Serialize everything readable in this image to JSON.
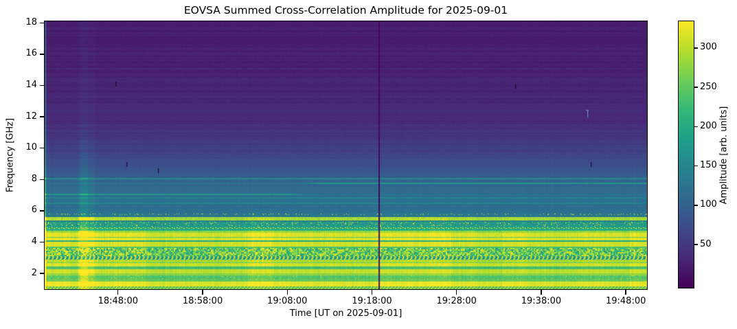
{
  "chart_data": {
    "type": "heatmap",
    "subtype": "radio-dynamic-spectrum",
    "title": "EOVSA Summed Cross-Correlation Amplitude for 2025-09-01",
    "xlabel": "Time [UT on 2025-09-01]",
    "ylabel": "Frequency [GHz]",
    "x_ticks": [
      "18:48:00",
      "18:58:00",
      "19:08:00",
      "19:18:00",
      "19:28:00",
      "19:38:00",
      "19:48:00"
    ],
    "x_range_time": [
      "18:39:20",
      "19:50:30"
    ],
    "y_ticks": [
      2,
      4,
      6,
      8,
      10,
      12,
      14,
      16,
      18
    ],
    "y_range_ghz": [
      1.0,
      18.1
    ],
    "grid": false,
    "colorbar": {
      "label": "Amplitude [arb. units]",
      "ticks": [
        50,
        100,
        150,
        200,
        250,
        300
      ],
      "range": [
        -5,
        334
      ],
      "colormap": "viridis"
    },
    "upper_profile": [
      [
        18.1,
        21
      ],
      [
        17.0,
        23
      ],
      [
        16.0,
        25
      ],
      [
        15.0,
        26
      ],
      [
        14.0,
        29
      ],
      [
        13.0,
        31
      ],
      [
        12.0,
        35
      ],
      [
        11.4,
        40
      ],
      [
        11.0,
        44
      ],
      [
        10.5,
        50
      ],
      [
        10.0,
        56
      ],
      [
        9.6,
        63
      ],
      [
        9.2,
        72
      ],
      [
        8.8,
        80
      ],
      [
        8.4,
        90
      ],
      [
        8.1,
        98
      ],
      [
        7.9,
        104
      ],
      [
        7.5,
        110
      ],
      [
        7.2,
        113
      ],
      [
        6.9,
        117
      ],
      [
        6.6,
        119
      ],
      [
        6.3,
        119
      ],
      [
        6.1,
        116
      ],
      [
        5.95,
        122
      ],
      [
        5.62,
        128
      ]
    ],
    "spectral_bands": [
      {
        "f_top": 8.09,
        "f_bot": 8.01,
        "amp": 150,
        "noise": 6
      },
      {
        "f_top": 7.79,
        "f_bot": 7.71,
        "amp": 118,
        "noise": 6,
        "boost": {
          "side": "right",
          "from": 0.44,
          "amp": 52
        }
      },
      {
        "f_top": 7.09,
        "f_bot": 7.01,
        "amp": 122,
        "noise": 6,
        "boost": {
          "side": "left",
          "from": 0.42,
          "amp": 46
        }
      },
      {
        "f_top": 6.87,
        "f_bot": 6.79,
        "amp": 150,
        "noise": 6
      },
      {
        "f_top": 6.53,
        "f_bot": 6.44,
        "amp": 146,
        "noise": 6
      },
      {
        "f_top": 5.84,
        "f_bot": 5.74,
        "amp": 132,
        "noise": 8,
        "speck": {
          "p": 0.1,
          "amp": 295
        }
      },
      {
        "f_top": 5.62,
        "f_bot": 5.4,
        "amp": 292,
        "noise": 18
      },
      {
        "f_top": 5.4,
        "f_bot": 5.3,
        "amp": 138,
        "noise": 10
      },
      {
        "f_top": 5.3,
        "f_bot": 5.03,
        "amp": 180,
        "noise": 34,
        "speck": {
          "p": 0.05,
          "amp": 330
        }
      },
      {
        "f_top": 5.03,
        "f_bot": 4.93,
        "amp": 186,
        "noise": 12,
        "speck": {
          "p": 0.02,
          "amp": 330
        }
      },
      {
        "f_top": 4.93,
        "f_bot": 4.85,
        "amp": 196,
        "noise": 10,
        "dots": {
          "period": 7,
          "width": 2,
          "amp": 318
        }
      },
      {
        "f_top": 4.85,
        "f_bot": 4.73,
        "amp": 208,
        "noise": 16
      },
      {
        "f_top": 4.73,
        "f_bot": 4.61,
        "amp": 282,
        "noise": 18
      },
      {
        "f_top": 4.61,
        "f_bot": 4.35,
        "amp": 318,
        "noise": 10
      },
      {
        "f_top": 4.35,
        "f_bot": 4.29,
        "amp": 256,
        "noise": 12
      },
      {
        "f_top": 4.29,
        "f_bot": 4.11,
        "amp": 320,
        "noise": 9
      },
      {
        "f_top": 4.11,
        "f_bot": 4.03,
        "amp": 202,
        "noise": 14
      },
      {
        "f_top": 4.03,
        "f_bot": 3.73,
        "amp": 315,
        "noise": 10
      },
      {
        "f_top": 3.73,
        "f_bot": 3.65,
        "amp": 238,
        "noise": 14
      },
      {
        "f_top": 3.65,
        "f_bot": 3.1,
        "amp": 256,
        "noise": 72,
        "coarse": 2
      },
      {
        "f_top": 3.1,
        "f_bot": 2.87,
        "amp": 183,
        "noise": 12,
        "dots": {
          "period": 6,
          "width": 2,
          "amp": 322
        }
      },
      {
        "f_top": 2.87,
        "f_bot": 2.73,
        "amp": 296,
        "noise": 13
      },
      {
        "f_top": 2.73,
        "f_bot": 2.65,
        "amp": 256,
        "noise": 12
      },
      {
        "f_top": 2.65,
        "f_bot": 2.43,
        "amp": 310,
        "noise": 10
      },
      {
        "f_top": 2.43,
        "f_bot": 2.25,
        "amp": 236,
        "noise": 13
      },
      {
        "f_top": 2.25,
        "f_bot": 2.03,
        "amp": 311,
        "noise": 9
      },
      {
        "f_top": 2.03,
        "f_bot": 1.89,
        "amp": 279,
        "noise": 11
      },
      {
        "f_top": 1.89,
        "f_bot": 1.63,
        "amp": 249,
        "noise": 13,
        "speck": {
          "p": 0.02,
          "amp": 322
        }
      },
      {
        "f_top": 1.63,
        "f_bot": 1.47,
        "amp": 259,
        "noise": 11
      },
      {
        "f_top": 1.47,
        "f_bot": 1.17,
        "amp": 324,
        "noise": 7
      },
      {
        "f_top": 1.17,
        "f_bot": 0.99,
        "amp": 240,
        "noise": 10,
        "dots": {
          "period": 5,
          "width": 2,
          "amp": 302
        }
      }
    ],
    "bright_stripes": [
      {
        "start": "18:43:20",
        "end": "18:45:15",
        "boost": 0.12
      },
      {
        "start": "18:43:32",
        "end": "18:44:25",
        "boost": 0.14
      }
    ],
    "data_gap": {
      "time": "19:18:51",
      "width_seconds": 10
    },
    "bright_left_edge_columns": 3,
    "artifacts": [
      {
        "time": "18:47:40",
        "freq_ghz": 14.1,
        "kind": "dark-dash"
      },
      {
        "time": "18:49:00",
        "freq_ghz": 9.0,
        "kind": "dark-dash"
      },
      {
        "time": "18:52:45",
        "freq_ghz": 8.6,
        "kind": "dark-dash"
      },
      {
        "time": "19:34:55",
        "freq_ghz": 14.0,
        "kind": "dark-dash"
      },
      {
        "time": "19:43:50",
        "freq_ghz": 9.0,
        "kind": "dark-dash"
      },
      {
        "time": "19:43:25",
        "freq_ghz": 12.3,
        "kind": "light-mark"
      }
    ]
  },
  "colors": {
    "background": "#ffffff",
    "text": "#000000",
    "viridis_stops": [
      "#440154",
      "#482878",
      "#3e4a89",
      "#31688e",
      "#26828e",
      "#1f9e89",
      "#35b779",
      "#6dcd59",
      "#b4de2c",
      "#fde725"
    ]
  }
}
